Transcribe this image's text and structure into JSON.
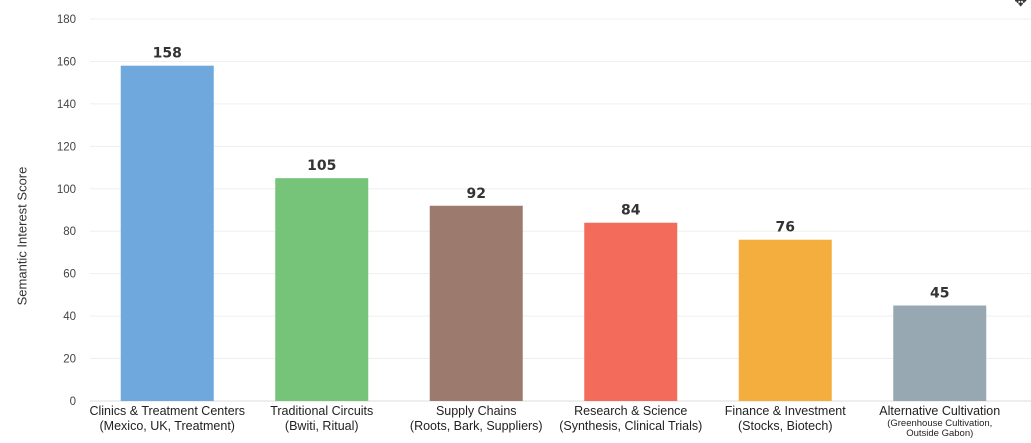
{
  "chart_data": {
    "type": "bar",
    "categories": [
      {
        "line1": "Clinics & Treatment Centers",
        "line2": "(Mexico, UK, Treatment)"
      },
      {
        "line1": "Traditional Circuits",
        "line2": "(Bwiti, Ritual)"
      },
      {
        "line1": "Supply Chains",
        "line2": "(Roots, Bark, Suppliers)"
      },
      {
        "line1": "Research & Science",
        "line2": "(Synthesis, Clinical Trials)"
      },
      {
        "line1": "Finance & Investment",
        "line2": "(Stocks, Biotech)"
      },
      {
        "line1": "Alternative Cultivation",
        "line2": "(Greenhouse Cultivation, Outside Gabon)"
      }
    ],
    "values": [
      158,
      105,
      92,
      84,
      76,
      45
    ],
    "data_labels": [
      "158",
      "105",
      "92",
      "84",
      "76",
      "45"
    ],
    "colors": [
      "#6fa8dc",
      "#76c479",
      "#9c7b6e",
      "#f26b5b",
      "#f4ae3d",
      "#97a8b3"
    ],
    "title": "",
    "xlabel": "",
    "ylabel": "Semantic Interest Score",
    "ylim": [
      0,
      180
    ],
    "yticks": [
      0,
      20,
      40,
      60,
      80,
      100,
      120,
      140,
      160,
      180
    ],
    "grid": true
  },
  "toolbar": {
    "icon": "pan-icon",
    "glyph": "✥"
  }
}
